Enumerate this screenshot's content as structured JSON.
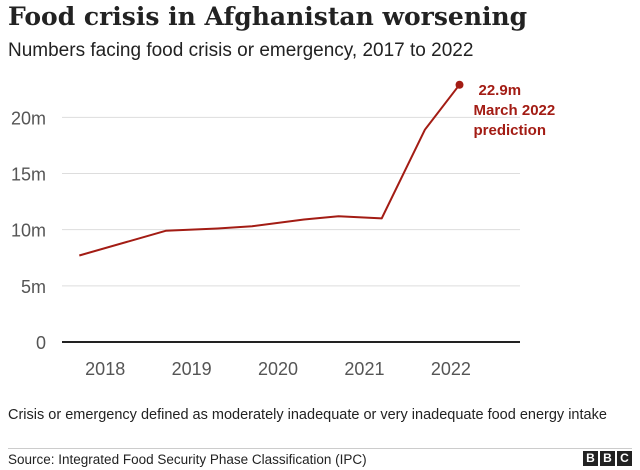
{
  "header": {
    "title": "Food crisis in Afghanistan worsening",
    "subtitle": "Numbers facing food crisis or emergency, 2017 to 2022"
  },
  "footer": {
    "note": "Crisis or emergency defined as moderately inadequate or very inadequate food energy intake",
    "source": "Source: Integrated Food Security Phase Classification (IPC)",
    "logo_letters": [
      "B",
      "B",
      "C"
    ]
  },
  "chart_data": {
    "type": "line",
    "title": "Food crisis in Afghanistan worsening",
    "subtitle": "Numbers facing food crisis or emergency, 2017 to 2022",
    "xlabel": "",
    "ylabel": "",
    "x_ticks": [
      "2018",
      "2019",
      "2020",
      "2021",
      "2022"
    ],
    "y_ticks": [
      "0",
      "5m",
      "10m",
      "15m",
      "20m"
    ],
    "y_tick_values": [
      0,
      5,
      10,
      15,
      20
    ],
    "xlim": [
      2017.5,
      2022.8
    ],
    "ylim": [
      0,
      23.5
    ],
    "grid": true,
    "color": "#a31c14",
    "series": [
      {
        "x": [
          2017.7,
          2018.7,
          2019.3,
          2019.7,
          2020.3,
          2020.7,
          2021.2,
          2021.7,
          2022.1
        ],
        "values": [
          7.7,
          9.9,
          10.1,
          10.3,
          10.9,
          11.2,
          11.0,
          18.9,
          22.9
        ]
      }
    ],
    "annotation": {
      "lines": [
        "22.9m",
        "March 2022",
        "prediction"
      ]
    }
  }
}
